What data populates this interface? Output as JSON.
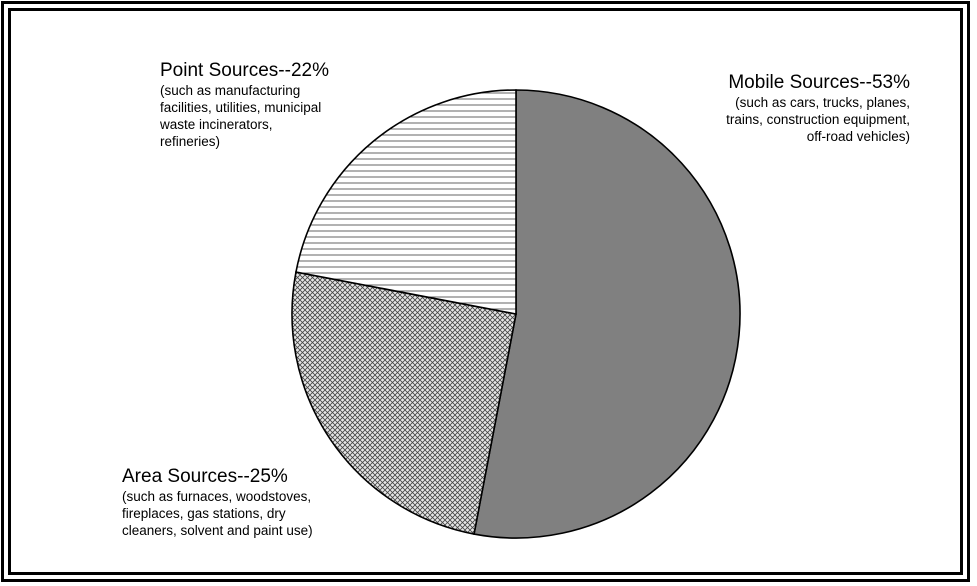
{
  "chart_data": {
    "type": "pie",
    "title": "",
    "slices": [
      {
        "label": "Mobile Sources--53%",
        "value": 53,
        "detail": "(such as cars, trucks, planes,\ntrains, construction equipment,\noff-road vehicles)",
        "fill": "solid-gray",
        "color": "#808080"
      },
      {
        "label": "Area Sources--25%",
        "value": 25,
        "detail": "(such as furnaces, woodstoves,\nfireplaces, gas stations, dry\ncleaners, solvent and paint use)",
        "fill": "crosshatch",
        "color": "#cccccc"
      },
      {
        "label": "Point Sources--22%",
        "value": 22,
        "detail": "(such as manufacturing\nfacilities, utilities, municipal\nwaste incinerators,\nrefineries)",
        "fill": "horizontal-lines",
        "color": "#ffffff"
      }
    ],
    "start": "12 o'clock",
    "direction": "clockwise",
    "legend": "none"
  }
}
